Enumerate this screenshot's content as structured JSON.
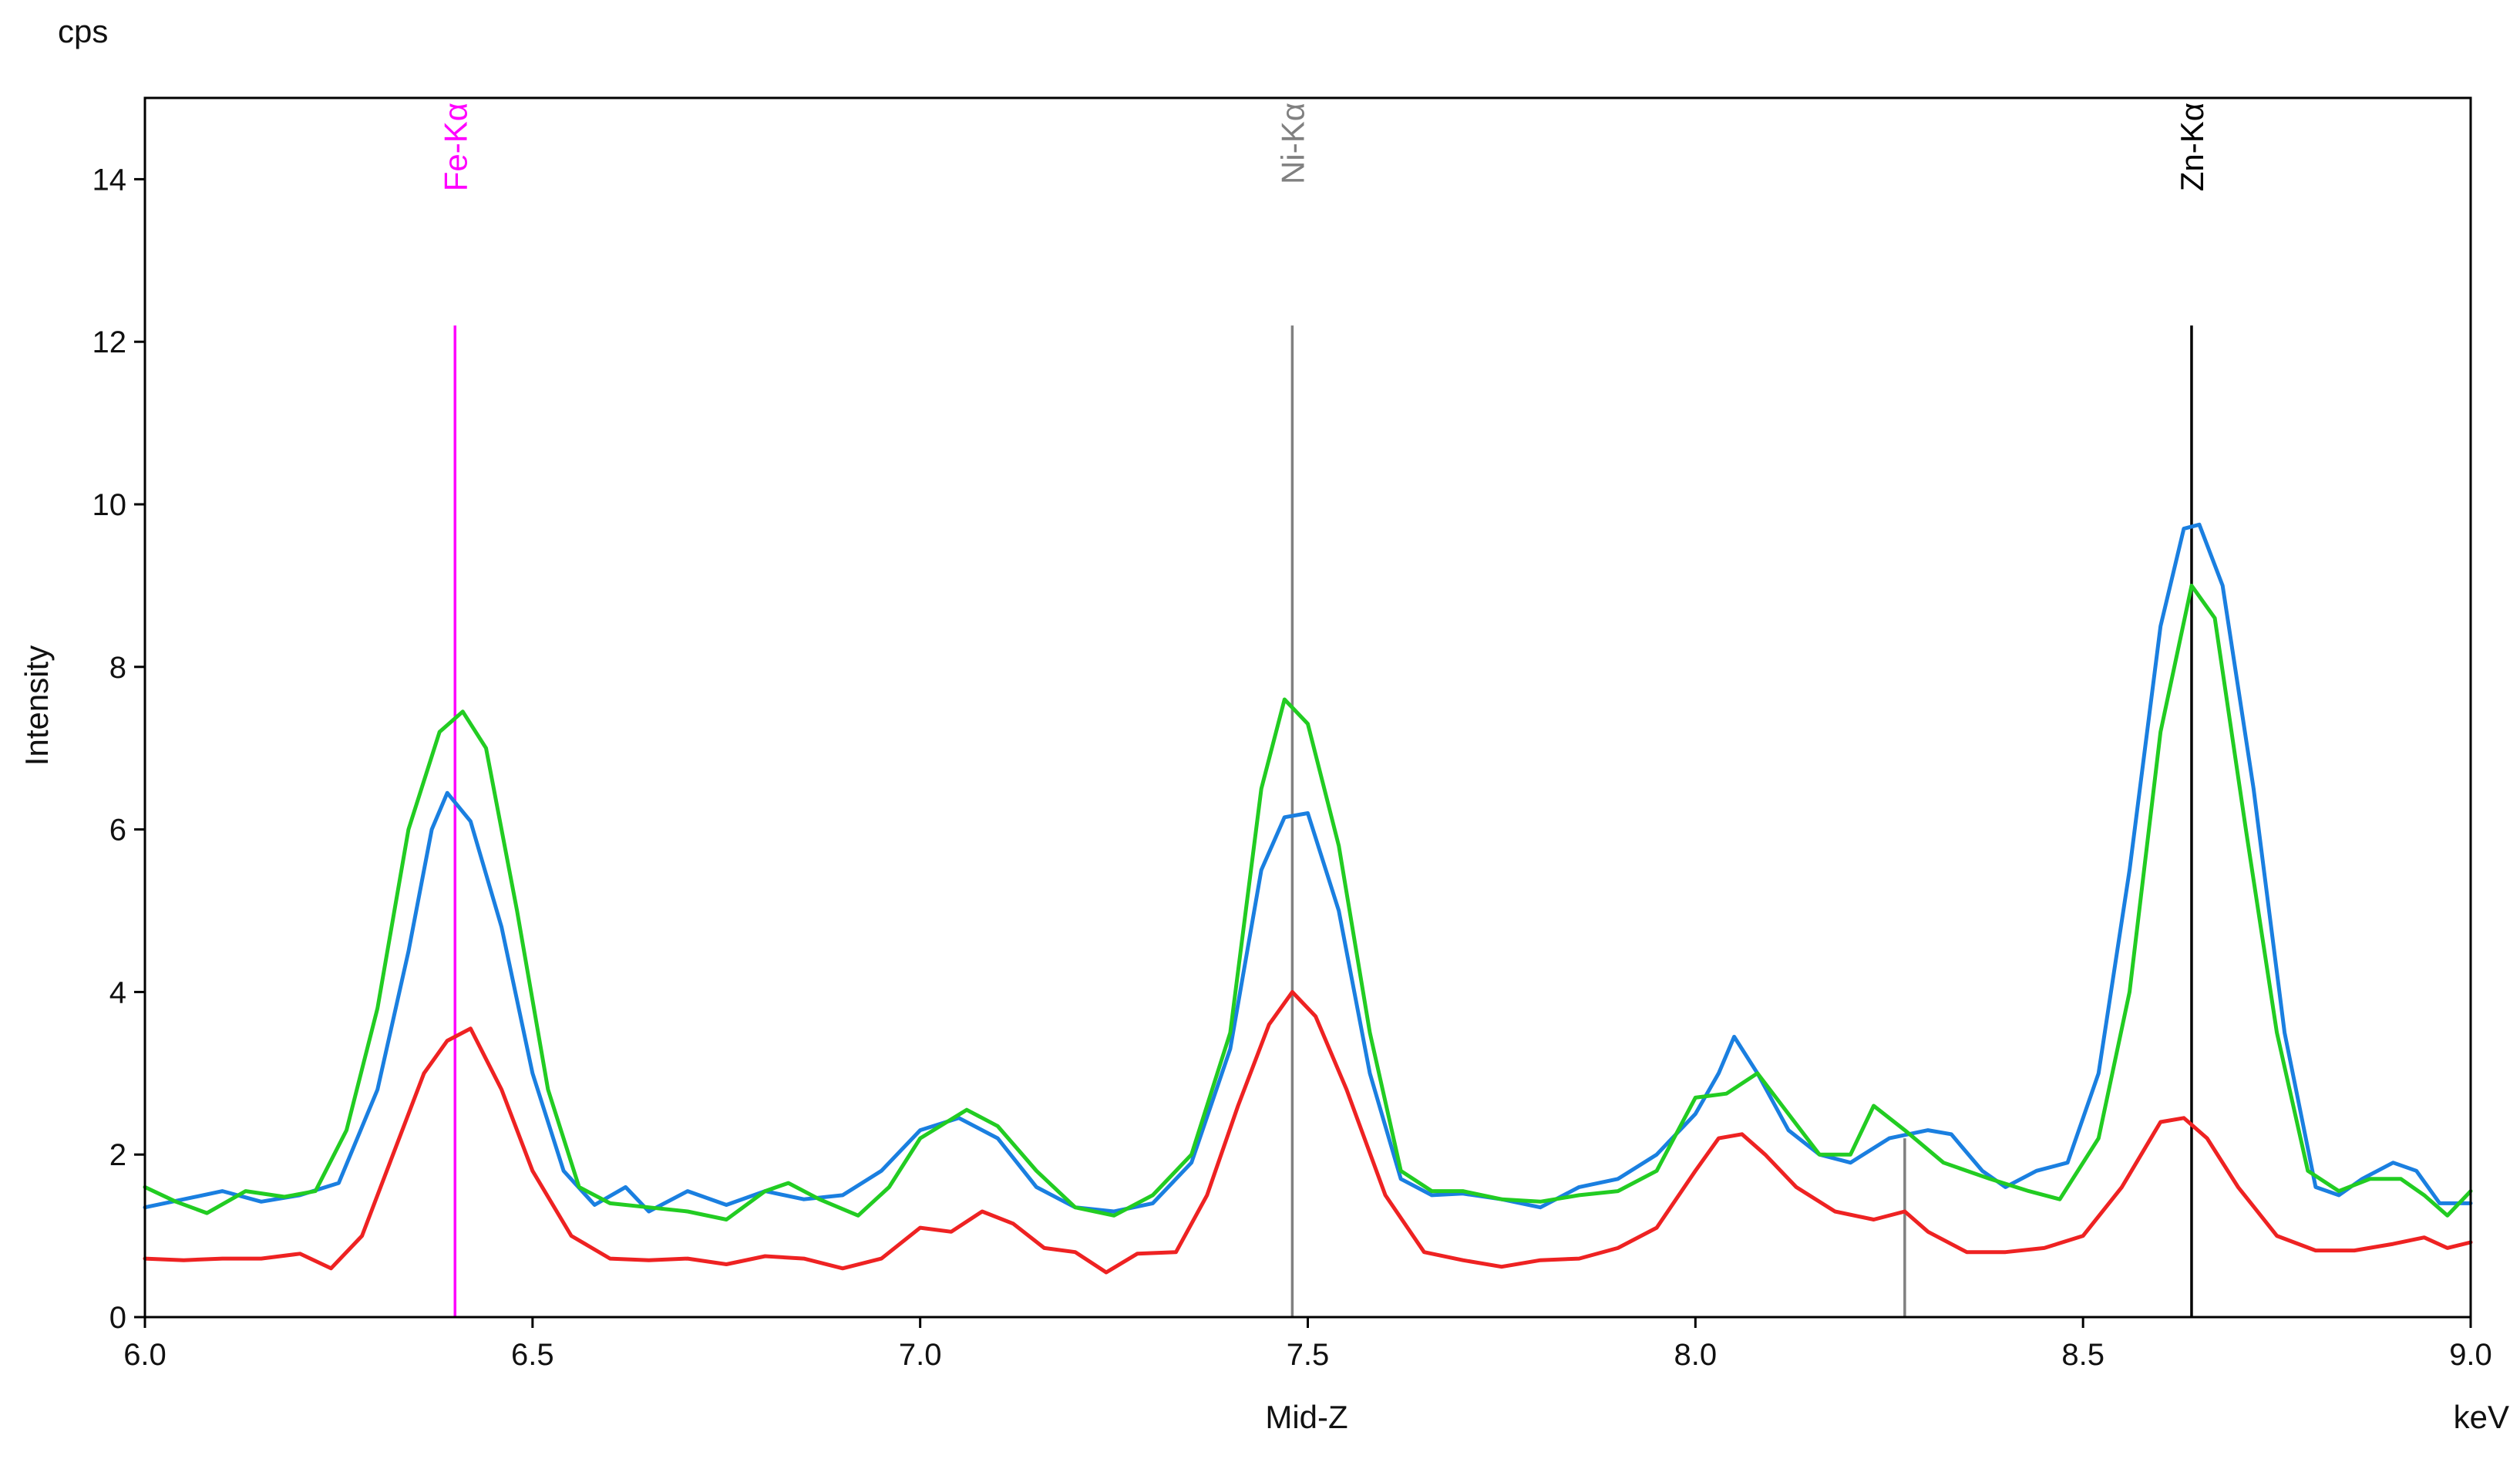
{
  "chart_data": {
    "type": "line",
    "title": "",
    "xlabel": "Mid-Z",
    "xunit": "keV",
    "ylabel": "Intensity",
    "yunit": "cps",
    "xlim": [
      6.0,
      9.0
    ],
    "ylim": [
      0,
      15
    ],
    "xticks": [
      6.0,
      6.5,
      7.0,
      7.5,
      8.0,
      8.5,
      9.0
    ],
    "xtick_labels": [
      "6.0",
      "6.5",
      "7.0",
      "7.5",
      "8.0",
      "8.5",
      "9.0"
    ],
    "yticks": [
      0,
      2,
      4,
      6,
      8,
      10,
      12,
      14
    ],
    "ytick_labels": [
      "0",
      "2",
      "4",
      "6",
      "8",
      "10",
      "12",
      "14"
    ],
    "grid": false,
    "legend": "none",
    "element_lines": [
      {
        "label": "Fe-Kα",
        "energy": 6.4,
        "top": 12.2,
        "color": "#ff00ff"
      },
      {
        "label": "Ni-Kα",
        "energy": 7.48,
        "top": 12.2,
        "color": "#808080"
      },
      {
        "label": "Zn-Kα",
        "energy": 8.64,
        "top": 12.2,
        "color": "#000000"
      },
      {
        "label": "",
        "energy": 8.27,
        "top": 2.2,
        "color": "#808080"
      }
    ],
    "series": [
      {
        "color": "#1a7fe0",
        "points": [
          [
            6.0,
            1.35
          ],
          [
            6.05,
            1.45
          ],
          [
            6.1,
            1.55
          ],
          [
            6.15,
            1.42
          ],
          [
            6.2,
            1.5
          ],
          [
            6.25,
            1.65
          ],
          [
            6.3,
            2.8
          ],
          [
            6.34,
            4.5
          ],
          [
            6.37,
            6.0
          ],
          [
            6.39,
            6.45
          ],
          [
            6.42,
            6.1
          ],
          [
            6.46,
            4.8
          ],
          [
            6.5,
            3.0
          ],
          [
            6.54,
            1.8
          ],
          [
            6.58,
            1.38
          ],
          [
            6.62,
            1.6
          ],
          [
            6.65,
            1.3
          ],
          [
            6.7,
            1.55
          ],
          [
            6.75,
            1.38
          ],
          [
            6.8,
            1.55
          ],
          [
            6.85,
            1.45
          ],
          [
            6.9,
            1.5
          ],
          [
            6.95,
            1.8
          ],
          [
            7.0,
            2.3
          ],
          [
            7.05,
            2.45
          ],
          [
            7.1,
            2.2
          ],
          [
            7.15,
            1.6
          ],
          [
            7.2,
            1.35
          ],
          [
            7.25,
            1.3
          ],
          [
            7.3,
            1.4
          ],
          [
            7.35,
            1.9
          ],
          [
            7.4,
            3.3
          ],
          [
            7.44,
            5.5
          ],
          [
            7.47,
            6.15
          ],
          [
            7.5,
            6.2
          ],
          [
            7.54,
            5.0
          ],
          [
            7.58,
            3.0
          ],
          [
            7.62,
            1.7
          ],
          [
            7.66,
            1.5
          ],
          [
            7.7,
            1.52
          ],
          [
            7.75,
            1.45
          ],
          [
            7.8,
            1.35
          ],
          [
            7.85,
            1.6
          ],
          [
            7.9,
            1.7
          ],
          [
            7.95,
            2.0
          ],
          [
            8.0,
            2.5
          ],
          [
            8.03,
            3.0
          ],
          [
            8.05,
            3.45
          ],
          [
            8.08,
            3.0
          ],
          [
            8.12,
            2.3
          ],
          [
            8.16,
            2.0
          ],
          [
            8.2,
            1.9
          ],
          [
            8.25,
            2.2
          ],
          [
            8.3,
            2.3
          ],
          [
            8.33,
            2.25
          ],
          [
            8.37,
            1.8
          ],
          [
            8.4,
            1.6
          ],
          [
            8.44,
            1.8
          ],
          [
            8.48,
            1.9
          ],
          [
            8.52,
            3.0
          ],
          [
            8.56,
            5.5
          ],
          [
            8.6,
            8.5
          ],
          [
            8.63,
            9.7
          ],
          [
            8.65,
            9.75
          ],
          [
            8.68,
            9.0
          ],
          [
            8.72,
            6.5
          ],
          [
            8.76,
            3.5
          ],
          [
            8.8,
            1.6
          ],
          [
            8.83,
            1.5
          ],
          [
            8.86,
            1.7
          ],
          [
            8.9,
            1.9
          ],
          [
            8.93,
            1.8
          ],
          [
            8.96,
            1.4
          ],
          [
            9.0,
            1.4
          ]
        ]
      },
      {
        "color": "#22cc22",
        "points": [
          [
            6.0,
            1.6
          ],
          [
            6.04,
            1.42
          ],
          [
            6.08,
            1.28
          ],
          [
            6.13,
            1.55
          ],
          [
            6.18,
            1.48
          ],
          [
            6.22,
            1.55
          ],
          [
            6.26,
            2.3
          ],
          [
            6.3,
            3.8
          ],
          [
            6.34,
            6.0
          ],
          [
            6.38,
            7.2
          ],
          [
            6.41,
            7.45
          ],
          [
            6.44,
            7.0
          ],
          [
            6.48,
            5.0
          ],
          [
            6.52,
            2.8
          ],
          [
            6.56,
            1.6
          ],
          [
            6.6,
            1.4
          ],
          [
            6.65,
            1.35
          ],
          [
            6.7,
            1.3
          ],
          [
            6.75,
            1.2
          ],
          [
            6.8,
            1.55
          ],
          [
            6.83,
            1.65
          ],
          [
            6.87,
            1.45
          ],
          [
            6.92,
            1.25
          ],
          [
            6.96,
            1.6
          ],
          [
            7.0,
            2.2
          ],
          [
            7.06,
            2.55
          ],
          [
            7.1,
            2.35
          ],
          [
            7.15,
            1.8
          ],
          [
            7.2,
            1.35
          ],
          [
            7.25,
            1.25
          ],
          [
            7.3,
            1.5
          ],
          [
            7.35,
            2.0
          ],
          [
            7.4,
            3.5
          ],
          [
            7.44,
            6.5
          ],
          [
            7.47,
            7.6
          ],
          [
            7.5,
            7.3
          ],
          [
            7.54,
            5.8
          ],
          [
            7.58,
            3.5
          ],
          [
            7.62,
            1.8
          ],
          [
            7.66,
            1.55
          ],
          [
            7.7,
            1.55
          ],
          [
            7.75,
            1.45
          ],
          [
            7.8,
            1.42
          ],
          [
            7.85,
            1.5
          ],
          [
            7.9,
            1.55
          ],
          [
            7.95,
            1.8
          ],
          [
            8.0,
            2.7
          ],
          [
            8.04,
            2.75
          ],
          [
            8.08,
            3.0
          ],
          [
            8.12,
            2.5
          ],
          [
            8.16,
            2.0
          ],
          [
            8.2,
            2.0
          ],
          [
            8.23,
            2.6
          ],
          [
            8.27,
            2.3
          ],
          [
            8.32,
            1.9
          ],
          [
            8.38,
            1.7
          ],
          [
            8.43,
            1.55
          ],
          [
            8.47,
            1.45
          ],
          [
            8.52,
            2.2
          ],
          [
            8.56,
            4.0
          ],
          [
            8.6,
            7.2
          ],
          [
            8.64,
            9.0
          ],
          [
            8.67,
            8.6
          ],
          [
            8.71,
            6.0
          ],
          [
            8.75,
            3.5
          ],
          [
            8.79,
            1.8
          ],
          [
            8.83,
            1.55
          ],
          [
            8.87,
            1.7
          ],
          [
            8.91,
            1.7
          ],
          [
            8.94,
            1.5
          ],
          [
            8.97,
            1.25
          ],
          [
            9.0,
            1.55
          ]
        ]
      },
      {
        "color": "#ee2222",
        "points": [
          [
            6.0,
            0.72
          ],
          [
            6.05,
            0.7
          ],
          [
            6.1,
            0.72
          ],
          [
            6.15,
            0.72
          ],
          [
            6.2,
            0.78
          ],
          [
            6.24,
            0.6
          ],
          [
            6.28,
            1.0
          ],
          [
            6.32,
            2.0
          ],
          [
            6.36,
            3.0
          ],
          [
            6.39,
            3.4
          ],
          [
            6.42,
            3.55
          ],
          [
            6.46,
            2.8
          ],
          [
            6.5,
            1.8
          ],
          [
            6.55,
            1.0
          ],
          [
            6.6,
            0.72
          ],
          [
            6.65,
            0.7
          ],
          [
            6.7,
            0.72
          ],
          [
            6.75,
            0.65
          ],
          [
            6.8,
            0.75
          ],
          [
            6.85,
            0.72
          ],
          [
            6.9,
            0.6
          ],
          [
            6.95,
            0.72
          ],
          [
            7.0,
            1.1
          ],
          [
            7.04,
            1.05
          ],
          [
            7.08,
            1.3
          ],
          [
            7.12,
            1.15
          ],
          [
            7.16,
            0.85
          ],
          [
            7.2,
            0.8
          ],
          [
            7.24,
            0.55
          ],
          [
            7.28,
            0.78
          ],
          [
            7.33,
            0.8
          ],
          [
            7.37,
            1.5
          ],
          [
            7.41,
            2.6
          ],
          [
            7.45,
            3.6
          ],
          [
            7.48,
            4.0
          ],
          [
            7.51,
            3.7
          ],
          [
            7.55,
            2.8
          ],
          [
            7.6,
            1.5
          ],
          [
            7.65,
            0.8
          ],
          [
            7.7,
            0.7
          ],
          [
            7.75,
            0.62
          ],
          [
            7.8,
            0.7
          ],
          [
            7.85,
            0.72
          ],
          [
            7.9,
            0.85
          ],
          [
            7.95,
            1.1
          ],
          [
            8.0,
            1.8
          ],
          [
            8.03,
            2.2
          ],
          [
            8.06,
            2.25
          ],
          [
            8.09,
            2.0
          ],
          [
            8.13,
            1.6
          ],
          [
            8.18,
            1.3
          ],
          [
            8.23,
            1.2
          ],
          [
            8.27,
            1.3
          ],
          [
            8.3,
            1.05
          ],
          [
            8.35,
            0.8
          ],
          [
            8.4,
            0.8
          ],
          [
            8.45,
            0.85
          ],
          [
            8.5,
            1.0
          ],
          [
            8.55,
            1.6
          ],
          [
            8.6,
            2.4
          ],
          [
            8.63,
            2.45
          ],
          [
            8.66,
            2.2
          ],
          [
            8.7,
            1.6
          ],
          [
            8.75,
            1.0
          ],
          [
            8.8,
            0.82
          ],
          [
            8.85,
            0.82
          ],
          [
            8.9,
            0.9
          ],
          [
            8.94,
            0.98
          ],
          [
            8.97,
            0.85
          ],
          [
            9.0,
            0.92
          ]
        ]
      }
    ]
  }
}
